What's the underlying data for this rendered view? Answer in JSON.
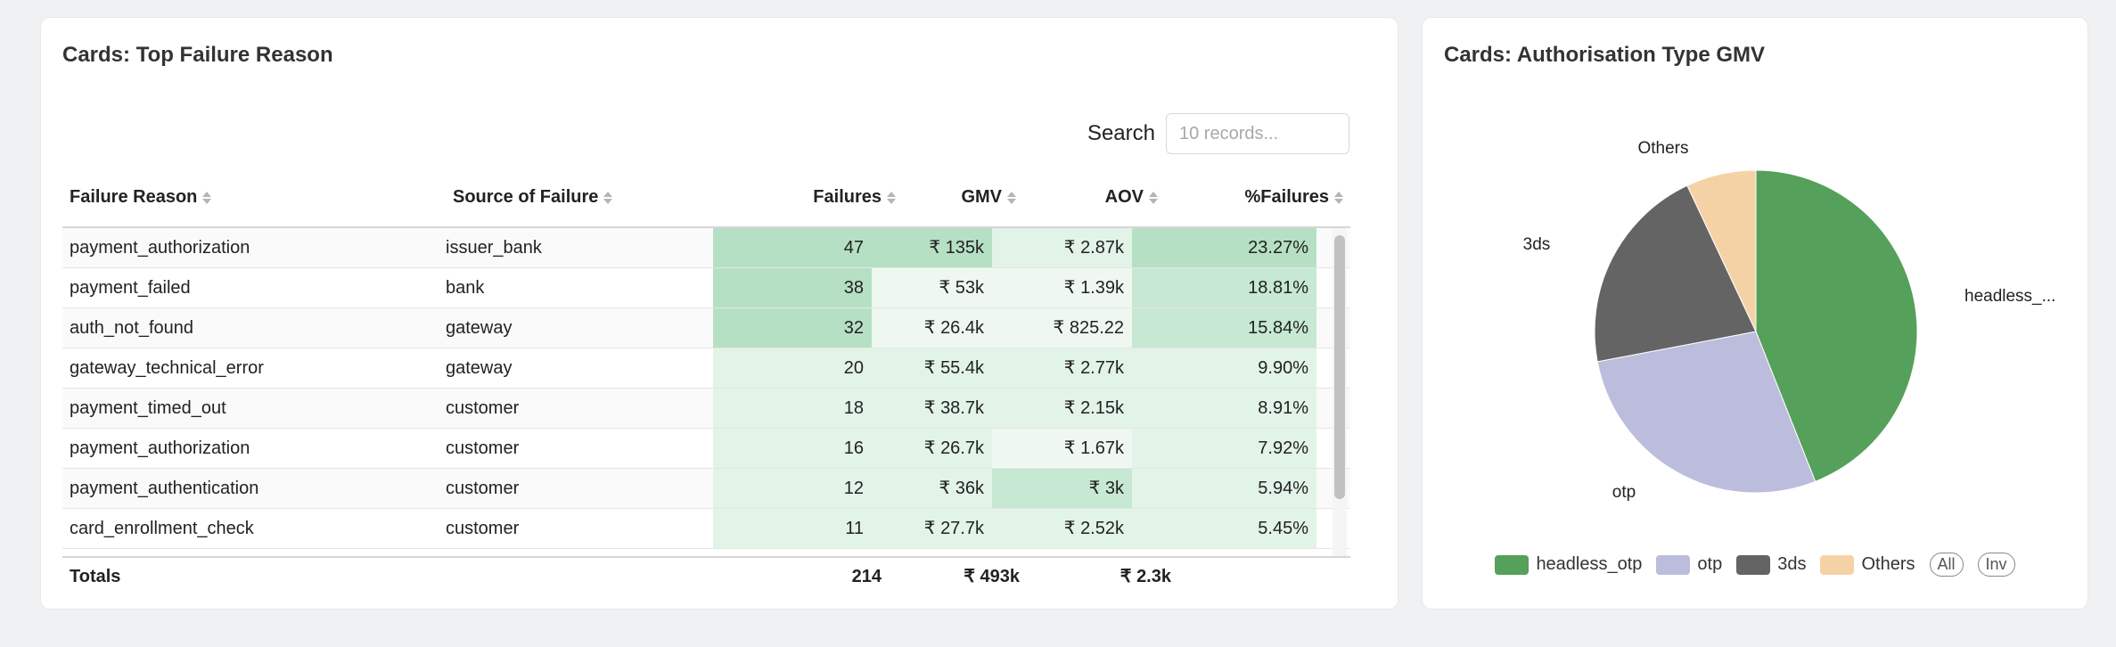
{
  "left": {
    "title": "Cards: Top Failure Reason",
    "search": {
      "label": "Search",
      "placeholder": "10 records..."
    },
    "columns": [
      "Failure Reason",
      "Source of Failure",
      "Failures",
      "GMV",
      "AOV",
      "%Failures"
    ],
    "rows": [
      {
        "reason": "payment_authorization",
        "source": "issuer_bank",
        "failures": "47",
        "gmv": "₹ 135k",
        "aov": "₹ 2.87k",
        "pct": "23.27%"
      },
      {
        "reason": "payment_failed",
        "source": "bank",
        "failures": "38",
        "gmv": "₹ 53k",
        "aov": "₹ 1.39k",
        "pct": "18.81%"
      },
      {
        "reason": "auth_not_found",
        "source": "gateway",
        "failures": "32",
        "gmv": "₹ 26.4k",
        "aov": "₹ 825.22",
        "pct": "15.84%"
      },
      {
        "reason": "gateway_technical_error",
        "source": "gateway",
        "failures": "20",
        "gmv": "₹ 55.4k",
        "aov": "₹ 2.77k",
        "pct": "9.90%"
      },
      {
        "reason": "payment_timed_out",
        "source": "customer",
        "failures": "18",
        "gmv": "₹ 38.7k",
        "aov": "₹ 2.15k",
        "pct": "8.91%"
      },
      {
        "reason": "payment_authorization",
        "source": "customer",
        "failures": "16",
        "gmv": "₹ 26.7k",
        "aov": "₹ 1.67k",
        "pct": "7.92%"
      },
      {
        "reason": "payment_authentication",
        "source": "customer",
        "failures": "12",
        "gmv": "₹ 36k",
        "aov": "₹ 3k",
        "pct": "5.94%"
      },
      {
        "reason": "card_enrollment_check",
        "source": "customer",
        "failures": "11",
        "gmv": "₹ 27.7k",
        "aov": "₹ 2.52k",
        "pct": "5.45%"
      }
    ],
    "totals": {
      "label": "Totals",
      "failures": "214",
      "gmv": "₹ 493k",
      "aov": "₹ 2.3k"
    },
    "heat_colors": {
      "strong": "#b6e0c4",
      "mid": "#c7e8d2",
      "light": "#e2f3e8",
      "faint": "#eef8f1"
    }
  },
  "right": {
    "title": "Cards: Authorisation Type GMV",
    "chart_data": {
      "type": "pie",
      "slices": [
        {
          "name": "headless_otp",
          "label": "headless_...",
          "value": 44,
          "color": "#55a05a"
        },
        {
          "name": "otp",
          "label": "otp",
          "value": 28,
          "color": "#bcbcdc"
        },
        {
          "name": "3ds",
          "label": "3ds",
          "value": 21,
          "color": "#646464"
        },
        {
          "name": "Others",
          "label": "Others",
          "value": 7,
          "color": "#f5d2a6"
        }
      ],
      "legend": [
        "headless_otp",
        "otp",
        "3ds",
        "Others"
      ],
      "legend_placement": "bottom"
    },
    "legend_controls": {
      "all": "All",
      "inv": "Inv"
    }
  }
}
